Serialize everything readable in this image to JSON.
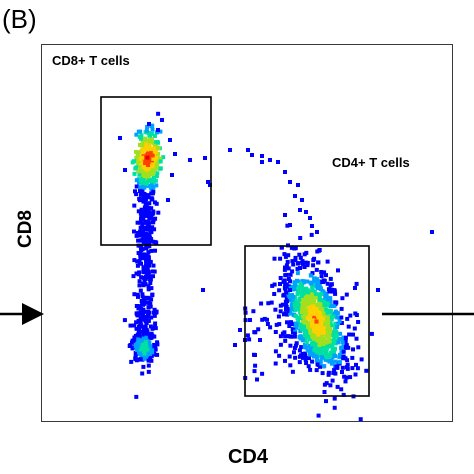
{
  "panel_label": "(B)",
  "chart_data": {
    "type": "scatter",
    "title": "",
    "xlabel": "CD4",
    "ylabel": "CD8",
    "grid": false,
    "legend": "none",
    "colormap": [
      "#0000ff",
      "#00a0ff",
      "#00e0a0",
      "#a0e020",
      "#ffd000",
      "#ff4000",
      "#e00000"
    ],
    "gates": [
      {
        "label": "CD8+ T cells"
      },
      {
        "label": "CD4+ T cells"
      }
    ],
    "populations": [
      {
        "gate": "CD8+ T cells",
        "description_color": "dense red core top-left"
      },
      {
        "gate": "CD4+ T cells",
        "description_color": "dense green/yellow core lower-right"
      }
    ],
    "markers": [
      {
        "name": "left-arrow",
        "direction": "right"
      },
      {
        "name": "right-line"
      }
    ]
  }
}
